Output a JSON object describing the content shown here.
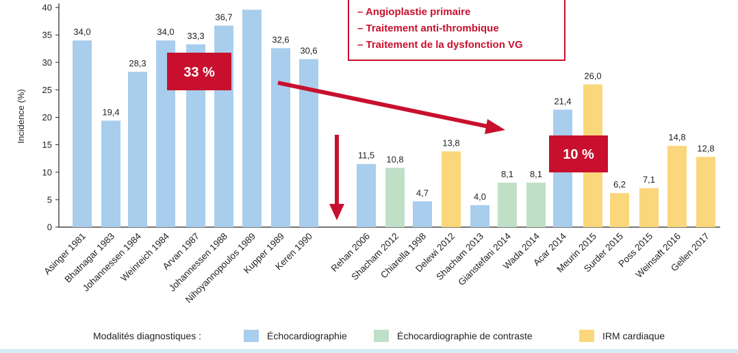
{
  "chart_data": {
    "type": "bar",
    "ylabel": "Incidence (%)",
    "ylim": [
      0,
      40
    ],
    "yticks": [
      0,
      5,
      10,
      15,
      20,
      25,
      30,
      35,
      40
    ],
    "categories": [
      "Asinger 1981",
      "Bhatnagar 1983",
      "Johannessen 1984",
      "Weinreich 1984",
      "Arvan 1987",
      "Johannessen 1988",
      "Nihoyannopoulos 1989",
      "Kupper 1989",
      "Keren 1990",
      "Rehan 2006",
      "Shacham 2012",
      "Chiarella 1998",
      "Delewi 2012",
      "Shacham 2013",
      "Gianstefani 2014",
      "Wada 2014",
      "Acar 2014",
      "Meurin 2015",
      "Surder 2015",
      "Poss 2015",
      "Weinsaft 2016",
      "Gellen 2017"
    ],
    "values": [
      34.0,
      19.4,
      28.3,
      34.0,
      33.3,
      36.7,
      39.6,
      32.6,
      30.6,
      11.5,
      10.8,
      4.7,
      13.8,
      4.0,
      8.1,
      8.1,
      21.4,
      26.0,
      6.2,
      7.1,
      14.8,
      12.8
    ],
    "value_labels": [
      "34,0",
      "19,4",
      "28,3",
      "34,0",
      "33,3",
      "36,7",
      "",
      "32,6",
      "30,6",
      "11,5",
      "10,8",
      "4,7",
      "13,8",
      "4,0",
      "8,1",
      "8,1",
      "21,4",
      "26,0",
      "6,2",
      "7,1",
      "14,8",
      "12,8"
    ],
    "modality": [
      "echo",
      "echo",
      "echo",
      "echo",
      "echo",
      "echo",
      "echo",
      "echo",
      "echo",
      "echo",
      "contrast",
      "echo",
      "irm",
      "echo",
      "contrast",
      "contrast",
      "echo",
      "irm",
      "irm",
      "irm",
      "irm",
      "irm"
    ],
    "colors": {
      "echo": "#a9cdec",
      "contrast": "#bfe0c7",
      "irm": "#fbd77c",
      "accent": "#c8102e"
    },
    "annotations": {
      "box_lines": [
        "– Angioplastie primaire",
        "– Traitement anti-thrombique",
        "– Traitement de la dysfonction VG"
      ],
      "left_badge": "33 %",
      "right_badge": "10 %"
    },
    "legend": {
      "title": "Modalités diagnostiques :",
      "items": [
        {
          "key": "echo",
          "label": "Échocardiographie"
        },
        {
          "key": "contrast",
          "label": "Échocardiographie de contraste"
        },
        {
          "key": "irm",
          "label": "IRM cardiaque"
        }
      ]
    }
  }
}
